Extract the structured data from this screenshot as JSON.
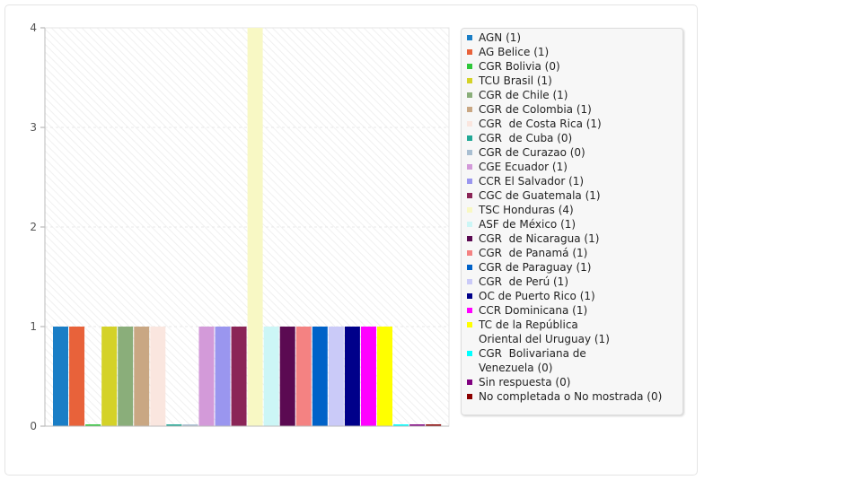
{
  "chart_data": {
    "type": "bar",
    "title": "",
    "xlabel": "",
    "ylabel": "",
    "ylim": [
      0,
      4
    ],
    "yticks": [
      "0",
      "1",
      "2",
      "3",
      "4"
    ],
    "grid": true,
    "legend_position": "right",
    "series": [
      {
        "name": "AGN (1)",
        "value": 1,
        "color": "#1a7ec6"
      },
      {
        "name": "AG Belice (1)",
        "value": 1,
        "color": "#e8623a"
      },
      {
        "name": "CGR Bolivia (0)",
        "value": 0,
        "color": "#2fc73a"
      },
      {
        "name": "TCU Brasil (1)",
        "value": 1,
        "color": "#d4d228"
      },
      {
        "name": "CGR de Chile (1)",
        "value": 1,
        "color": "#8aae7a"
      },
      {
        "name": "CGR de Colombia (1)",
        "value": 1,
        "color": "#c9a783"
      },
      {
        "name": "CGR  de Costa Rica (1)",
        "value": 1,
        "color": "#fae6df"
      },
      {
        "name": "CGR  de Cuba (0)",
        "value": 0,
        "color": "#22a896"
      },
      {
        "name": "CGR de Curazao (0)",
        "value": 0,
        "color": "#a9bfd2"
      },
      {
        "name": "CGE Ecuador (1)",
        "value": 1,
        "color": "#d39ad9"
      },
      {
        "name": "CCR El Salvador (1)",
        "value": 1,
        "color": "#9a96ef"
      },
      {
        "name": "CGC de Guatemala (1)",
        "value": 1,
        "color": "#8b2557"
      },
      {
        "name": "TSC Honduras (4)",
        "value": 4,
        "color": "#f8f8c4"
      },
      {
        "name": "ASF de México (1)",
        "value": 1,
        "color": "#ccf6f6"
      },
      {
        "name": "CGR  de Nicaragua (1)",
        "value": 1,
        "color": "#5b0a52"
      },
      {
        "name": "CGR  de Panamá (1)",
        "value": 1,
        "color": "#f48282"
      },
      {
        "name": "CGR de Paraguay (1)",
        "value": 1,
        "color": "#0062c8"
      },
      {
        "name": "CGR  de Perú (1)",
        "value": 1,
        "color": "#cacaf8"
      },
      {
        "name": "OC de Puerto Rico (1)",
        "value": 1,
        "color": "#00008a"
      },
      {
        "name": "CCR Dominicana (1)",
        "value": 1,
        "color": "#ff00ff"
      },
      {
        "name": "TC de la República\nOriental del Uruguay (1)",
        "value": 1,
        "color": "#ffff00"
      },
      {
        "name": "CGR  Bolivariana de\nVenezuela (0)",
        "value": 0,
        "color": "#00ffff"
      },
      {
        "name": "Sin respuesta (0)",
        "value": 0,
        "color": "#800080"
      },
      {
        "name": "No completada o No mostrada (0)",
        "value": 0,
        "color": "#8b0000"
      }
    ]
  }
}
